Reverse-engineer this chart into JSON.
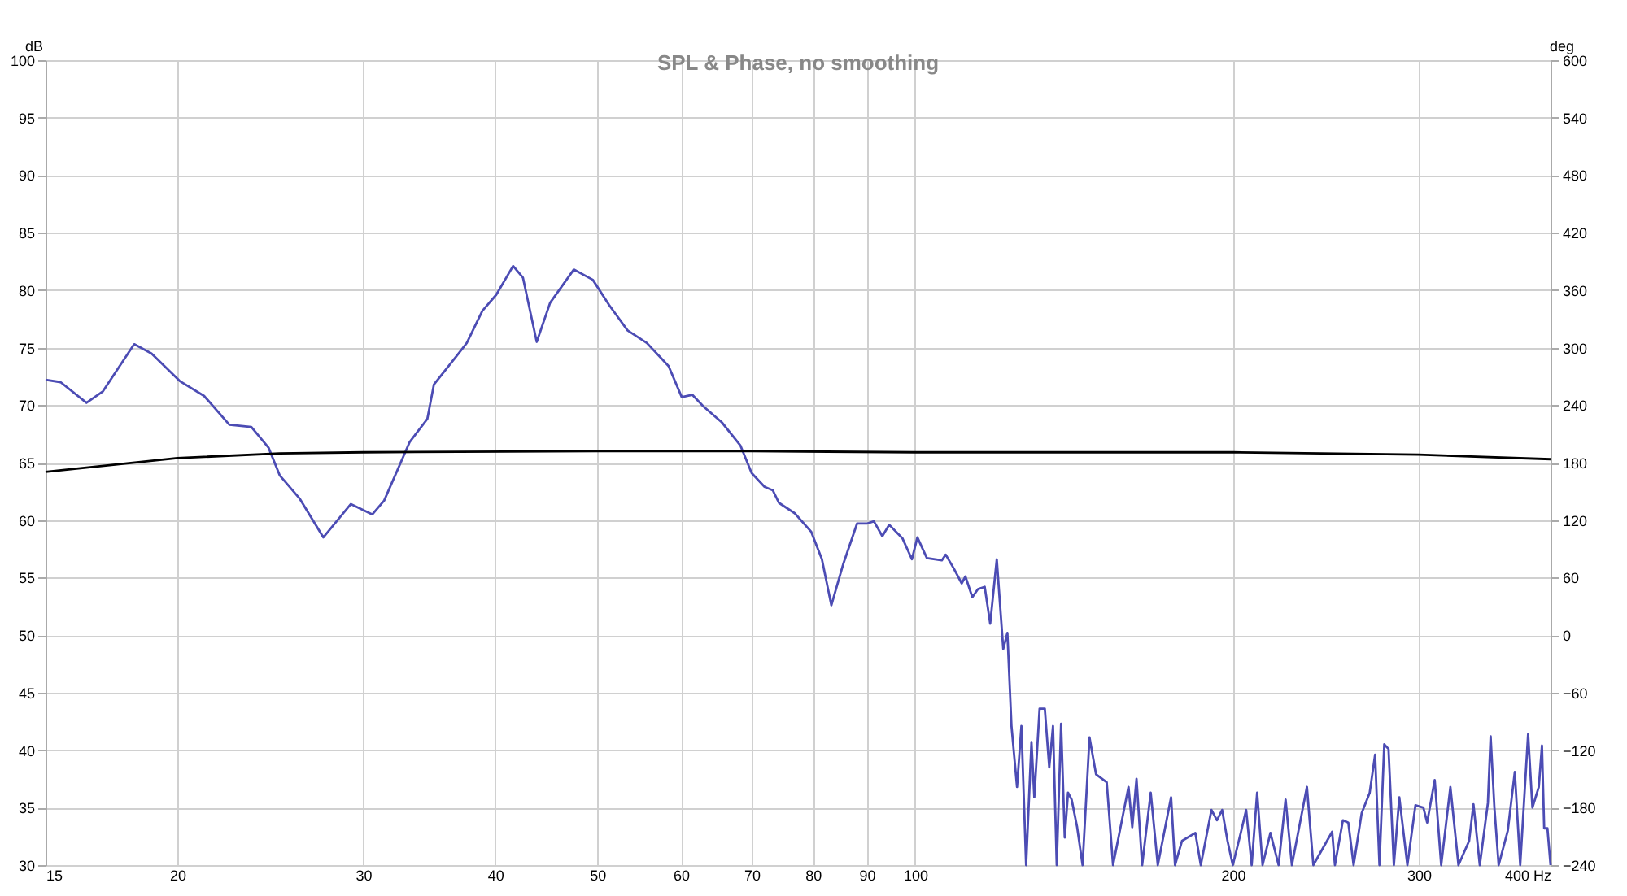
{
  "chart_data": {
    "type": "line",
    "title": "SPL & Phase, no smoothing",
    "ylabel": "dB",
    "y2label": "deg",
    "log": "x",
    "xlim": [
      15,
      400
    ],
    "ylim": [
      30,
      100
    ],
    "y2lim": [
      -240,
      600
    ],
    "xticks": [
      15,
      20,
      30,
      40,
      50,
      60,
      70,
      80,
      90,
      100,
      200,
      300,
      {
        "value": 400,
        "label": "400 Hz"
      }
    ],
    "yticks": [
      30,
      35,
      40,
      45,
      50,
      55,
      60,
      65,
      70,
      75,
      80,
      85,
      90,
      95,
      100
    ],
    "y2ticks": [
      -240,
      -180,
      -120,
      -60,
      0,
      60,
      120,
      180,
      240,
      300,
      360,
      420,
      480,
      540,
      600
    ],
    "grid": true,
    "marker": "none",
    "line_style": "solid",
    "series": [
      {
        "color": "#4c4cb4",
        "x": [
          15,
          15.5,
          16.4,
          17.0,
          18.2,
          18.9,
          20.1,
          21.2,
          22.4,
          23.5,
          24.4,
          25.0,
          26.1,
          27.5,
          29.2,
          30.6,
          31.4,
          33.2,
          34.5,
          35,
          36.8,
          37.6,
          38.9,
          40.1,
          41.6,
          42.5,
          43.8,
          45.1,
          47.5,
          49.5,
          51.3,
          53.4,
          55.7,
          58.4,
          60.1,
          61.5,
          63.0,
          65.6,
          68.3,
          70,
          72.0,
          73.3,
          74.3,
          76.9,
          79.7,
          81.6,
          83.3,
          85.5,
          88.1,
          90,
          91.4,
          93.1,
          94.5,
          97.3,
          99.3,
          100.5,
          102.6,
          106.0,
          106.9,
          108.8,
          110.7,
          111.6,
          113.3,
          114.7,
          116.4,
          117.8,
          119.5,
          121.2,
          122.3,
          123.4,
          124.9,
          126.1,
          127.4,
          128.9,
          129.7,
          131.2,
          132.7,
          134.0,
          135.1,
          136.2,
          137.5,
          138.6,
          139.6,
          140.7,
          142.4,
          144.1,
          146.3,
          148.4,
          151.9,
          154.0,
          159.3,
          160.6,
          162.1,
          164.1,
          167.2,
          169.8,
          174.8,
          176.3,
          179.0,
          184.3,
          186.5,
          190.9,
          193.2,
          195.4,
          197.7,
          200.0,
          203.5,
          205.9,
          208.4,
          210.9,
          213.4,
          217.1,
          221.0,
          224.4,
          227.5,
          235.1,
          238.4,
          248.4,
          249.9,
          254.3,
          257.3,
          260.3,
          264.9,
          269.6,
          272.8,
          275.4,
          278.3,
          280.9,
          284.2,
          287.6,
          292.7,
          297.9,
          303.1,
          305.6,
          310.7,
          315.1,
          321.5,
          327.2,
          334.9,
          338.1,
          342.8,
          348.9,
          351.0,
          353.9,
          357.2,
          364.4,
          370.0,
          374.4,
          380.9,
          384.5,
          389.9,
          392.6,
          394.5,
          397.3,
          400
        ],
        "values": [
          72.2,
          72.0,
          70.2,
          71.2,
          75.3,
          74.5,
          72.1,
          70.8,
          68.3,
          68.1,
          66.3,
          63.9,
          61.9,
          58.5,
          61.4,
          60.5,
          61.7,
          66.8,
          68.8,
          71.8,
          74.3,
          75.4,
          78.2,
          79.6,
          82.1,
          81.1,
          75.5,
          78.9,
          81.8,
          80.9,
          78.7,
          76.5,
          75.4,
          73.4,
          70.7,
          70.9,
          69.9,
          68.5,
          66.5,
          64.1,
          62.9,
          62.6,
          61.5,
          60.6,
          59.0,
          56.6,
          52.6,
          56.2,
          59.7,
          59.7,
          59.9,
          58.6,
          59.6,
          58.4,
          56.6,
          58.5,
          56.7,
          56.5,
          57.0,
          55.8,
          54.5,
          55.1,
          53.3,
          54.0,
          54.2,
          51.0,
          56.6,
          48.8,
          50.2,
          42.1,
          36.8,
          42.1,
          30.0,
          40.7,
          35.9,
          43.6,
          43.6,
          38.5,
          42.1,
          30.0,
          42.3,
          32.4,
          36.3,
          35.7,
          33.3,
          30.0,
          41.1,
          37.9,
          37.2,
          30.0,
          36.8,
          33.3,
          37.5,
          30.0,
          36.3,
          30.0,
          35.9,
          30.0,
          32.1,
          32.8,
          30.0,
          34.8,
          33.9,
          34.8,
          32.1,
          30.0,
          32.8,
          34.8,
          30.0,
          36.3,
          30.0,
          32.8,
          30.0,
          35.7,
          30.0,
          36.8,
          30.0,
          32.9,
          30.0,
          33.9,
          33.7,
          30.0,
          34.5,
          36.3,
          39.6,
          30.0,
          40.5,
          40.1,
          30.0,
          35.9,
          30.0,
          35.2,
          35.0,
          33.7,
          37.4,
          30.0,
          36.8,
          30.0,
          32.1,
          35.3,
          30.0,
          35.4,
          41.2,
          35.0,
          30.0,
          33.0,
          38.1,
          30.0,
          41.4,
          35.0,
          36.8,
          40.4,
          33.2,
          33.2,
          30.0
        ]
      },
      {
        "color": "#000000",
        "x": [
          15,
          20,
          25,
          30,
          50,
          70,
          100,
          200,
          300,
          400
        ],
        "values": [
          64.2,
          65.4,
          65.8,
          65.9,
          66.0,
          66.0,
          65.9,
          65.9,
          65.7,
          65.3
        ]
      }
    ]
  }
}
